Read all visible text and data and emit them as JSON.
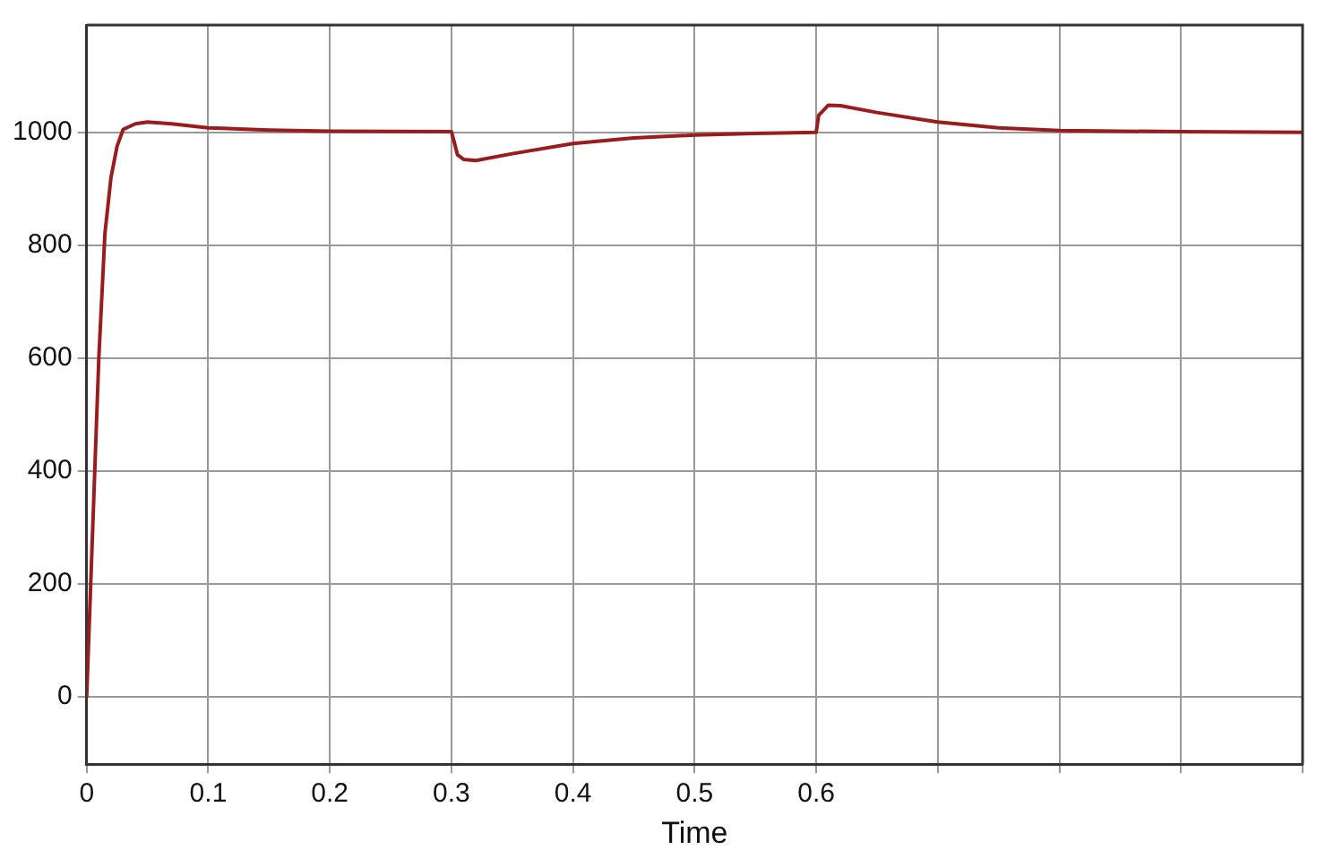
{
  "chart_data": {
    "type": "line",
    "xlabel": "Time",
    "xlim": [
      0,
      1
    ],
    "xticks": [
      0,
      0.1,
      0.2,
      0.3,
      0.4,
      0.5,
      0.6,
      {
        "value": 0.7,
        "label": null
      },
      {
        "value": 0.8,
        "label": null
      },
      {
        "value": 0.9,
        "label": null
      },
      {
        "value": 1,
        "label": null
      }
    ],
    "ylim": [
      -120,
      1190
    ],
    "yticks": [
      0,
      200,
      400,
      600,
      800,
      1000
    ],
    "grid": true,
    "legend": false,
    "marker": "none",
    "line_style": "solid",
    "series": [
      {
        "color": "#9a1c1c",
        "x": [
          0,
          0.005,
          0.01,
          0.015,
          0.02,
          0.025,
          0.03,
          0.04,
          0.05,
          0.07,
          0.1,
          0.15,
          0.2,
          0.3,
          0.302,
          0.305,
          0.31,
          0.32,
          0.35,
          0.4,
          0.45,
          0.5,
          0.55,
          0.6,
          0.602,
          0.61,
          0.62,
          0.65,
          0.7,
          0.75,
          0.8,
          0.9,
          1.0
        ],
        "values": [
          0,
          300,
          600,
          820,
          920,
          975,
          1005,
          1015,
          1018,
          1015,
          1008,
          1004,
          1002,
          1001,
          985,
          960,
          952,
          950,
          962,
          980,
          990,
          995,
          998,
          1000,
          1030,
          1048,
          1047,
          1035,
          1018,
          1008,
          1003,
          1001,
          1000
        ]
      }
    ]
  }
}
